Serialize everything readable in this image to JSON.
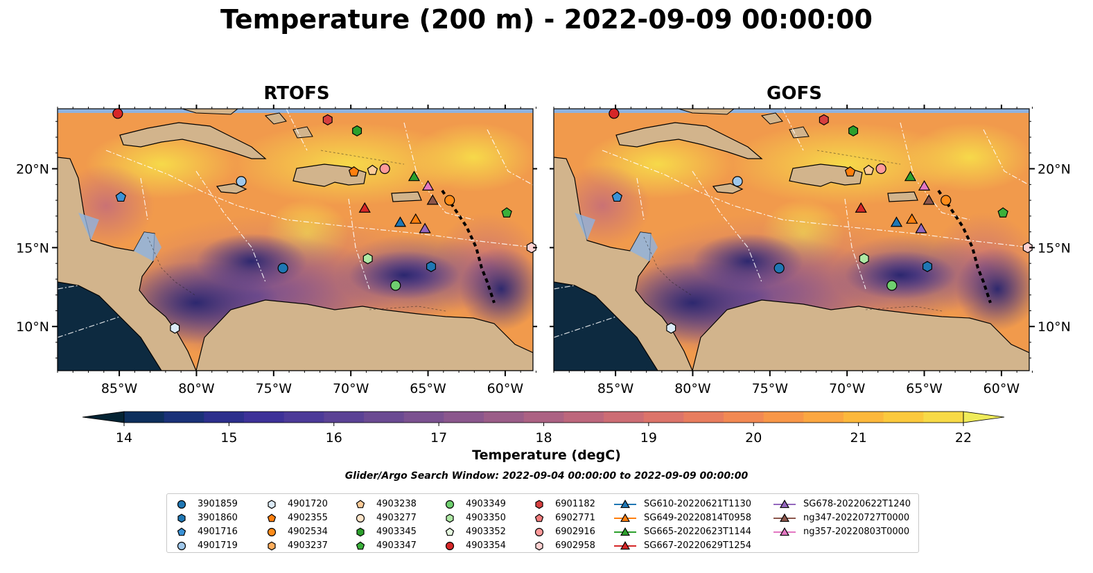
{
  "title": "Temperature (200 m) - 2022-09-09 00:00:00",
  "panels": [
    {
      "title": "RTOFS"
    },
    {
      "title": "GOFS"
    }
  ],
  "axes": {
    "lon_ticks": [
      "85°W",
      "80°W",
      "75°W",
      "70°W",
      "65°W",
      "60°W"
    ],
    "lat_ticks": [
      "20°N",
      "15°N",
      "10°N"
    ],
    "lon_range": [
      -89,
      -58.2
    ],
    "lat_range": [
      7.2,
      23.8
    ]
  },
  "colorbar": {
    "label": "Temperature (degC)",
    "ticks": [
      "14",
      "15",
      "16",
      "17",
      "18",
      "19",
      "20",
      "21",
      "22"
    ],
    "range": [
      14,
      22
    ],
    "extend": "both",
    "colormap": "thermal",
    "colors": [
      "#042333",
      "#0d2f5c",
      "#1a3178",
      "#2c2f8c",
      "#3d3198",
      "#4c3a98",
      "#5b4295",
      "#6b4a92",
      "#7b5190",
      "#8b578d",
      "#9b5d88",
      "#ac6283",
      "#bd677c",
      "#cd6d74",
      "#dc746a",
      "#e87d5e",
      "#f28953",
      "#f89748",
      "#fba741",
      "#fcb83c",
      "#fbc93d",
      "#f7da47",
      "#efeb5a"
    ]
  },
  "search_window": "Glider/Argo Search Window: 2022-09-04 00:00:00 to 2022-09-09 00:00:00",
  "legend": {
    "columns": [
      [
        {
          "label": "3901859",
          "marker": "circle",
          "color": "#1f77b4"
        },
        {
          "label": "3901860",
          "marker": "hexagon",
          "color": "#1f77b4"
        },
        {
          "label": "4901716",
          "marker": "pentagon",
          "color": "#3a92d6"
        },
        {
          "label": "4901719",
          "marker": "circle",
          "color": "#9fc7ea"
        }
      ],
      [
        {
          "label": "4901720",
          "marker": "hexagon",
          "color": "#dbeaf7"
        },
        {
          "label": "4902355",
          "marker": "pentagon",
          "color": "#ff7f0e"
        },
        {
          "label": "4902534",
          "marker": "circle",
          "color": "#ff8c1a"
        },
        {
          "label": "4903237",
          "marker": "hexagon",
          "color": "#ffad5c"
        }
      ],
      [
        {
          "label": "4903238",
          "marker": "pentagon",
          "color": "#ffcc99"
        },
        {
          "label": "4903277",
          "marker": "circle",
          "color": "#ffe4c8"
        },
        {
          "label": "4903345",
          "marker": "hexagon",
          "color": "#2ca02c"
        },
        {
          "label": "4903347",
          "marker": "pentagon",
          "color": "#3ab03a"
        }
      ],
      [
        {
          "label": "4903349",
          "marker": "circle",
          "color": "#6fcf6f"
        },
        {
          "label": "4903350",
          "marker": "hexagon",
          "color": "#aee8a4"
        },
        {
          "label": "4903352",
          "marker": "pentagon",
          "color": "#e4f7de"
        },
        {
          "label": "4903354",
          "marker": "circle",
          "color": "#d62728"
        }
      ],
      [
        {
          "label": "6901182",
          "marker": "hexagon",
          "color": "#d63f3f"
        },
        {
          "label": "6902771",
          "marker": "pentagon",
          "color": "#f07b7b"
        },
        {
          "label": "6902916",
          "marker": "circle",
          "color": "#ff9a9a"
        },
        {
          "label": "6902958",
          "marker": "hexagon",
          "color": "#ffd2d2"
        }
      ],
      [
        {
          "label": "SG610-20220621T1130",
          "marker": "triangle",
          "color": "#1f77b4",
          "line": true
        },
        {
          "label": "SG649-20220814T0958",
          "marker": "triangle",
          "color": "#ff7f0e",
          "line": true
        },
        {
          "label": "SG665-20220623T1144",
          "marker": "triangle",
          "color": "#2ca02c",
          "line": true
        },
        {
          "label": "SG667-20220629T1254",
          "marker": "triangle",
          "color": "#d62728",
          "line": true
        }
      ],
      [
        {
          "label": "SG678-20220622T1240",
          "marker": "triangle",
          "color": "#9467bd",
          "line": true
        },
        {
          "label": "ng347-20220727T0000",
          "marker": "triangle",
          "color": "#8c564b",
          "line": true
        },
        {
          "label": "ng357-20220803T0000",
          "marker": "triangle",
          "color": "#e377c2",
          "line": true
        }
      ]
    ]
  },
  "markers": [
    {
      "id": "3901859",
      "lon": -74.4,
      "lat": 13.7
    },
    {
      "id": "3901860",
      "lon": -64.8,
      "lat": 13.8
    },
    {
      "id": "4901716",
      "lon": -84.9,
      "lat": 18.2
    },
    {
      "id": "4901719",
      "lon": -77.1,
      "lat": 19.2
    },
    {
      "id": "4901720",
      "lon": -81.4,
      "lat": 9.9
    },
    {
      "id": "4902355",
      "lon": -69.8,
      "lat": 19.8
    },
    {
      "id": "4902534",
      "lon": -63.6,
      "lat": 18.0
    },
    {
      "id": "4903238",
      "lon": -68.6,
      "lat": 19.9
    },
    {
      "id": "4903345",
      "lon": -69.6,
      "lat": 22.4
    },
    {
      "id": "4903347",
      "lon": -59.9,
      "lat": 17.2
    },
    {
      "id": "4903349",
      "lon": -67.1,
      "lat": 12.6
    },
    {
      "id": "4903350",
      "lon": -68.9,
      "lat": 14.3
    },
    {
      "id": "4903354",
      "lon": -85.1,
      "lat": 23.5
    },
    {
      "id": "6901182",
      "lon": -71.5,
      "lat": 23.1
    },
    {
      "id": "6902916",
      "lon": -67.8,
      "lat": 20.0
    },
    {
      "id": "6902958",
      "lon": -58.3,
      "lat": 15.0
    },
    {
      "id": "SG610-20220621T1130",
      "lon": -66.8,
      "lat": 16.6
    },
    {
      "id": "SG649-20220814T0958",
      "lon": -65.8,
      "lat": 16.8
    },
    {
      "id": "SG665-20220623T1144",
      "lon": -65.9,
      "lat": 19.5
    },
    {
      "id": "SG667-20220629T1254",
      "lon": -69.1,
      "lat": 17.5
    },
    {
      "id": "SG678-20220622T1240",
      "lon": -65.2,
      "lat": 16.2
    },
    {
      "id": "ng347-20220727T0000",
      "lon": -64.7,
      "lat": 18.0
    },
    {
      "id": "ng357-20220803T0000",
      "lon": -65.0,
      "lat": 18.9
    }
  ]
}
